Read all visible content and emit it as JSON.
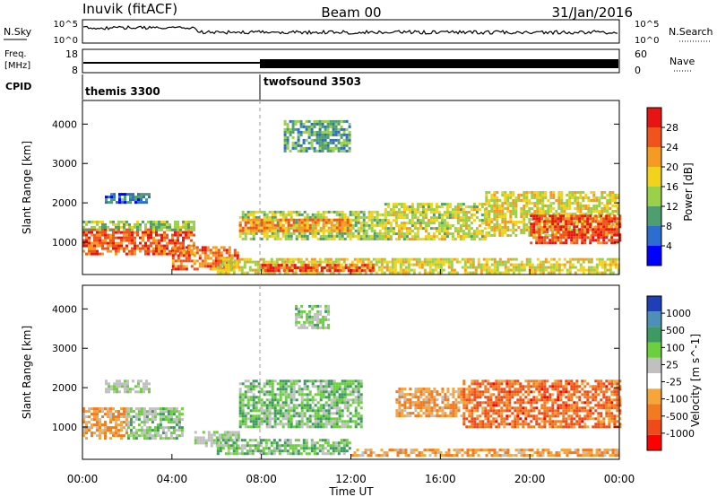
{
  "header": {
    "station": "Inuvik (fitACF)",
    "beam": "Beam 00",
    "date": "31/Jan/2016"
  },
  "noise_panel": {
    "left_label": "N.Sky",
    "right_label": "N.Search",
    "tick_top": "10^5",
    "tick_bottom": "10^0",
    "right_tick_top": "10^5",
    "right_tick_bottom": "10^0"
  },
  "freq_panel": {
    "left_label_1": "Freq.",
    "left_label_2": "[MHz]",
    "tick_top": "18",
    "tick_bottom": "8",
    "right_label": "Nave",
    "right_tick_top": "60",
    "right_tick_bottom": "0"
  },
  "cpid_panel": {
    "label": "CPID",
    "programs": [
      {
        "name": "themis 3300",
        "start_hour": 0
      },
      {
        "name": "twofsound 3503",
        "start_hour": 8
      }
    ]
  },
  "colors": {
    "power": [
      "#0000ff",
      "#2d6cd1",
      "#4f9e6f",
      "#9ad04a",
      "#f2d21b",
      "#f59a22",
      "#f0541c",
      "#e81414"
    ],
    "velocity": [
      "#ff0000",
      "#f04a1a",
      "#f27a20",
      "#f6a53a",
      "#ffffff",
      "#c0c0c0",
      "#6ccf3e",
      "#3e9a63",
      "#4e8fb8",
      "#1e3fb6"
    ]
  },
  "chart_data": [
    {
      "type": "heatmap",
      "title": "Power",
      "ylabel": "Slant Range [km]",
      "xlim": [
        0,
        24
      ],
      "ylim": [
        180,
        4600
      ],
      "yticks": [
        1000,
        2000,
        3000,
        4000
      ],
      "ytick_labels": [
        "1000",
        "2000",
        "3000",
        "4000"
      ],
      "colorbar": {
        "label": "Power [dB]",
        "range": [
          0,
          32
        ],
        "ticks": [
          "4",
          "8",
          "12",
          "16",
          "20",
          "24",
          "28"
        ]
      },
      "bands": [
        {
          "t0": 0.0,
          "t1": 5.0,
          "r0": 700,
          "r1": 1350,
          "lvl": 0.85
        },
        {
          "t0": 0.0,
          "t1": 5.0,
          "r0": 1300,
          "r1": 1550,
          "lvl": 0.4
        },
        {
          "t0": 1.0,
          "t1": 3.0,
          "r0": 2000,
          "r1": 2250,
          "lvl": 0.2
        },
        {
          "t0": 4.0,
          "t1": 7.0,
          "r0": 300,
          "r1": 900,
          "lvl": 0.8
        },
        {
          "t0": 7.0,
          "t1": 13.5,
          "r0": 1100,
          "r1": 1800,
          "lvl": 0.45
        },
        {
          "t0": 7.0,
          "t1": 12.0,
          "r0": 1300,
          "r1": 1600,
          "lvl": 0.75
        },
        {
          "t0": 6.0,
          "t1": 24.0,
          "r0": 250,
          "r1": 600,
          "lvl": 0.55
        },
        {
          "t0": 8.0,
          "t1": 13.0,
          "r0": 250,
          "r1": 450,
          "lvl": 0.9
        },
        {
          "t0": 13.5,
          "t1": 18.0,
          "r0": 1100,
          "r1": 2000,
          "lvl": 0.5
        },
        {
          "t0": 18.0,
          "t1": 24.0,
          "r0": 1200,
          "r1": 2300,
          "lvl": 0.55
        },
        {
          "t0": 20.0,
          "t1": 24.0,
          "r0": 1000,
          "r1": 1700,
          "lvl": 0.9
        },
        {
          "t0": 9.0,
          "t1": 12.0,
          "r0": 3300,
          "r1": 4100,
          "lvl": 0.3
        }
      ]
    },
    {
      "type": "heatmap",
      "title": "Velocity",
      "xlabel": "Time UT",
      "ylabel": "Slant Range [km]",
      "xlim": [
        0,
        24
      ],
      "ylim": [
        180,
        4600
      ],
      "xticks": [
        0,
        4,
        8,
        12,
        16,
        20,
        24
      ],
      "xtick_labels": [
        "00:00",
        "04:00",
        "08:00",
        "12:00",
        "16:00",
        "20:00",
        "00:00"
      ],
      "yticks": [
        1000,
        2000,
        3000,
        4000
      ],
      "ytick_labels": [
        "1000",
        "2000",
        "3000",
        "4000"
      ],
      "colorbar": {
        "label": "Velocity [m s^-1]",
        "range": [
          -1250,
          1250
        ],
        "ticks": [
          "-1000",
          "-500",
          "-100",
          "-25",
          "25",
          "100",
          "500",
          "1000"
        ]
      },
      "bands": [
        {
          "t0": 0.0,
          "t1": 2.0,
          "r0": 700,
          "r1": 1500,
          "lvl": 0.3
        },
        {
          "t0": 2.0,
          "t1": 4.5,
          "r0": 700,
          "r1": 1500,
          "lvl": 0.62
        },
        {
          "t0": 1.0,
          "t1": 3.0,
          "r0": 1900,
          "r1": 2200,
          "lvl": 0.55
        },
        {
          "t0": 5.0,
          "t1": 7.0,
          "r0": 500,
          "r1": 900,
          "lvl": 0.55
        },
        {
          "t0": 7.0,
          "t1": 12.5,
          "r0": 1000,
          "r1": 2200,
          "lvl": 0.68
        },
        {
          "t0": 6.0,
          "t1": 12.0,
          "r0": 300,
          "r1": 700,
          "lvl": 0.68
        },
        {
          "t0": 12.0,
          "t1": 24.0,
          "r0": 250,
          "r1": 450,
          "lvl": 0.3
        },
        {
          "t0": 14.0,
          "t1": 17.0,
          "r0": 1300,
          "r1": 2000,
          "lvl": 0.3
        },
        {
          "t0": 17.0,
          "t1": 24.0,
          "r0": 1000,
          "r1": 2200,
          "lvl": 0.18
        },
        {
          "t0": 9.5,
          "t1": 11.0,
          "r0": 3500,
          "r1": 4100,
          "lvl": 0.62
        }
      ]
    }
  ]
}
